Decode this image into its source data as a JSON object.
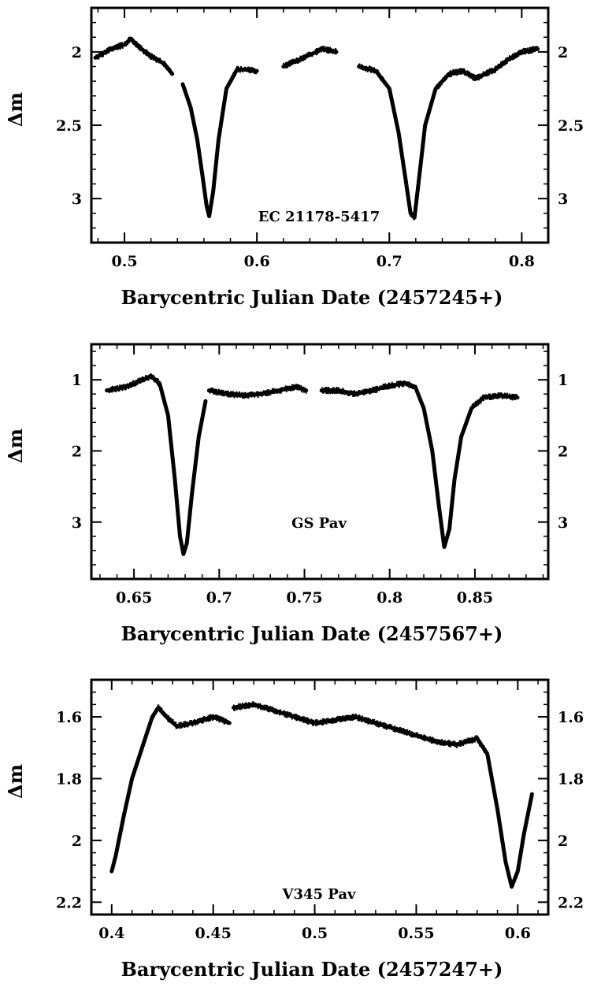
{
  "chart_data": [
    {
      "type": "scatter",
      "xlabel": "Barycentric Julian Date (2457245+)",
      "ylabel": "Δm",
      "annotation": "EC 21178-5417",
      "y_inverted": true,
      "xlim": [
        0.475,
        0.82
      ],
      "ylim": [
        3.3,
        1.7
      ],
      "xticks": [
        0.5,
        0.6,
        0.7,
        0.8
      ],
      "xtick_labels": [
        "0.5",
        "0.6",
        "0.7",
        "0.8"
      ],
      "yticks": [
        2,
        2.5,
        3
      ],
      "ytick_labels": [
        "2",
        "2.5",
        "3"
      ],
      "series": [
        {
          "x": [
            0.478,
            0.49,
            0.5,
            0.505,
            0.51,
            0.52,
            0.53,
            0.536
          ],
          "y": [
            2.04,
            1.98,
            1.95,
            1.91,
            1.96,
            2.03,
            2.08,
            2.15
          ]
        },
        {
          "x": [
            0.544,
            0.55,
            0.555,
            0.559,
            0.562,
            0.564,
            0.567,
            0.571,
            0.577,
            0.585,
            0.59,
            0.6
          ],
          "y": [
            2.22,
            2.38,
            2.6,
            2.85,
            3.05,
            3.12,
            2.95,
            2.6,
            2.25,
            2.12,
            2.12,
            2.13
          ]
        },
        {
          "x": [
            0.62,
            0.63,
            0.64,
            0.65,
            0.66
          ],
          "y": [
            2.1,
            2.06,
            2.02,
            1.98,
            2.0
          ]
        },
        {
          "x": [
            0.677,
            0.69,
            0.7,
            0.707,
            0.712,
            0.716,
            0.719,
            0.722,
            0.727,
            0.735,
            0.745,
            0.755,
            0.765,
            0.78,
            0.79,
            0.8,
            0.812
          ],
          "y": [
            2.1,
            2.13,
            2.25,
            2.55,
            2.85,
            3.1,
            3.13,
            2.9,
            2.5,
            2.25,
            2.15,
            2.13,
            2.18,
            2.12,
            2.05,
            2.0,
            1.98
          ]
        }
      ]
    },
    {
      "type": "scatter",
      "xlabel": "Barycentric Julian Date (2457567+)",
      "ylabel": "Δm",
      "annotation": "GS Pav",
      "y_inverted": true,
      "xlim": [
        0.625,
        0.893
      ],
      "ylim": [
        3.8,
        0.5
      ],
      "xticks": [
        0.65,
        0.7,
        0.75,
        0.8,
        0.85
      ],
      "xtick_labels": [
        "0.65",
        "0.7",
        "0.75",
        "0.8",
        "0.85"
      ],
      "yticks": [
        1,
        2,
        3
      ],
      "ytick_labels": [
        "1",
        "2",
        "3"
      ],
      "series": [
        {
          "x": [
            0.634,
            0.645,
            0.655,
            0.66,
            0.665,
            0.67,
            0.674,
            0.677,
            0.679,
            0.681,
            0.684,
            0.688,
            0.692
          ],
          "y": [
            1.15,
            1.1,
            1.0,
            0.95,
            1.05,
            1.5,
            2.4,
            3.2,
            3.45,
            3.3,
            2.6,
            1.8,
            1.3
          ]
        },
        {
          "x": [
            0.694,
            0.705,
            0.715,
            0.725,
            0.735,
            0.745,
            0.751
          ],
          "y": [
            1.15,
            1.2,
            1.22,
            1.2,
            1.15,
            1.1,
            1.15
          ]
        },
        {
          "x": [
            0.76,
            0.77,
            0.78,
            0.79,
            0.8,
            0.81,
            0.815,
            0.82,
            0.825,
            0.829,
            0.832,
            0.835,
            0.838,
            0.842,
            0.848,
            0.855,
            0.865,
            0.875
          ],
          "y": [
            1.15,
            1.15,
            1.2,
            1.15,
            1.08,
            1.05,
            1.1,
            1.4,
            2.0,
            2.8,
            3.35,
            3.1,
            2.4,
            1.8,
            1.4,
            1.25,
            1.22,
            1.25
          ]
        }
      ]
    },
    {
      "type": "scatter",
      "xlabel": "Barycentric Julian Date (2457247+)",
      "ylabel": "Δm",
      "annotation": "V345 Pav",
      "y_inverted": true,
      "xlim": [
        0.39,
        0.615
      ],
      "ylim": [
        2.24,
        1.48
      ],
      "xticks": [
        0.4,
        0.45,
        0.5,
        0.55,
        0.6
      ],
      "xtick_labels": [
        "0.4",
        "0.45",
        "0.5",
        "0.55",
        "0.6"
      ],
      "yticks": [
        1.6,
        1.8,
        2,
        2.2
      ],
      "ytick_labels": [
        "1.6",
        "1.8",
        "2",
        "2.2"
      ],
      "series": [
        {
          "x": [
            0.4,
            0.402,
            0.406,
            0.41,
            0.415,
            0.42,
            0.423,
            0.427,
            0.432,
            0.44,
            0.45,
            0.458
          ],
          "y": [
            2.1,
            2.05,
            1.92,
            1.8,
            1.7,
            1.6,
            1.57,
            1.6,
            1.63,
            1.62,
            1.6,
            1.62
          ]
        },
        {
          "x": [
            0.46,
            0.47,
            0.48,
            0.49,
            0.5,
            0.51,
            0.52,
            0.53,
            0.54,
            0.55,
            0.56,
            0.57,
            0.58,
            0.585,
            0.59,
            0.594,
            0.597,
            0.6,
            0.603,
            0.607
          ],
          "y": [
            1.57,
            1.56,
            1.58,
            1.6,
            1.62,
            1.61,
            1.6,
            1.62,
            1.64,
            1.66,
            1.68,
            1.69,
            1.67,
            1.72,
            1.9,
            2.07,
            2.15,
            2.1,
            1.98,
            1.85
          ]
        }
      ]
    }
  ]
}
